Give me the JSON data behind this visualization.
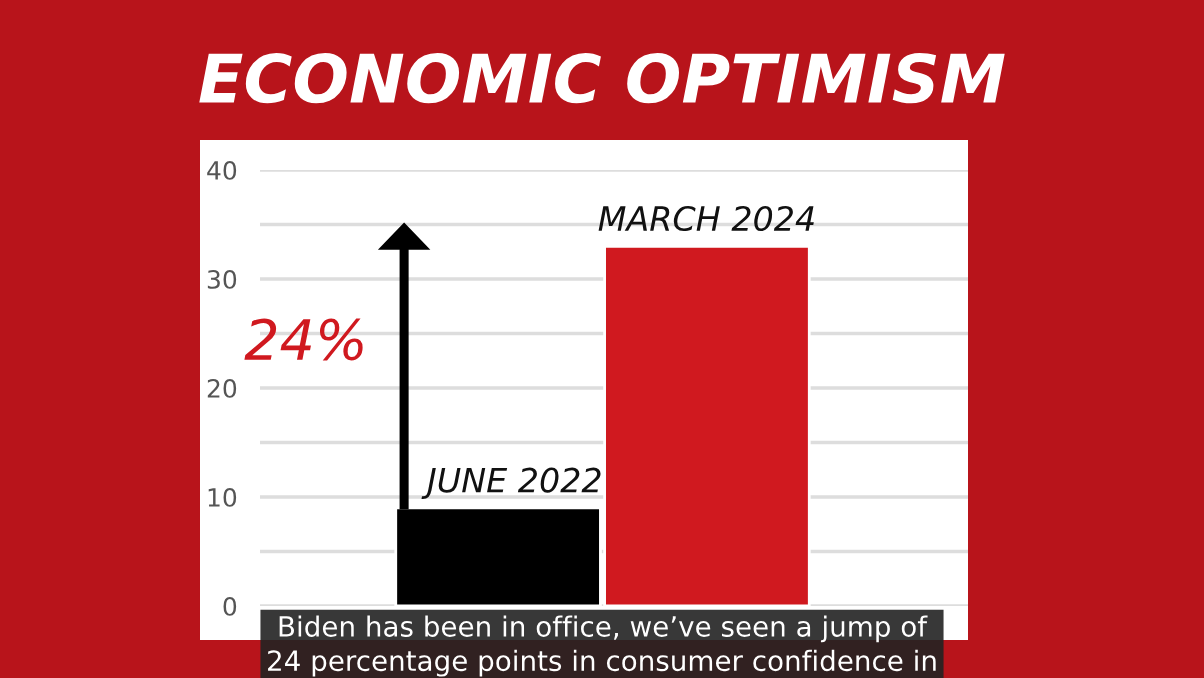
{
  "chart_data": {
    "type": "bar",
    "title": "ECONOMIC OPTIMISM",
    "categories": [
      "JUNE 2022",
      "MARCH 2024"
    ],
    "values": [
      9,
      33
    ],
    "colors": [
      "#000000",
      "#d0191f"
    ],
    "ylim": [
      0,
      40
    ],
    "yticks": [
      0,
      {
        "value": 5,
        "label": null
      },
      10,
      {
        "value": 15,
        "label": null
      },
      20,
      {
        "value": 25,
        "label": null
      },
      30,
      {
        "value": 35,
        "label": null
      },
      40
    ],
    "grid": "y",
    "annotations": [
      "24%",
      "Biden has been in office, we’ve seen a jump of\n24 percentage points in consumer confidence in"
    ]
  }
}
